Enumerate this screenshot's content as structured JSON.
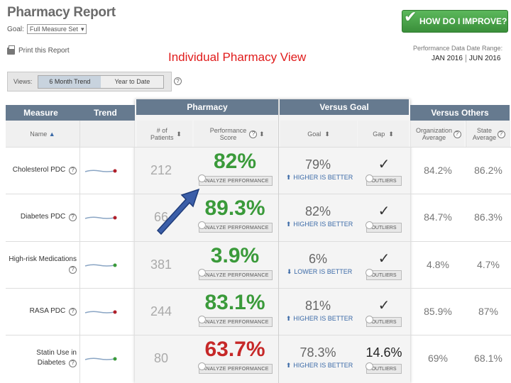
{
  "header": {
    "title": "Pharmacy Report",
    "goal_label": "Goal:",
    "goal_value": "Full Measure Set",
    "print_label": "Print this Report",
    "heading": "Individual Pharmacy View",
    "improve_label": "HOW DO I IMPROVE?",
    "date_range_label": "Performance Data Date Range:",
    "date_start": "JAN 2016",
    "date_end": "JUN 2016"
  },
  "views": {
    "label": "Views:",
    "tabs": [
      "6 Month Trend",
      "Year to Date"
    ],
    "active": 0
  },
  "table_headers": {
    "measure": "Measure",
    "trend": "Trend",
    "name": "Name",
    "pharmacy": "Pharmacy",
    "patients": "# of Patients",
    "performance": "Performance Score",
    "versus_goal": "Versus Goal",
    "goal": "Goal",
    "gap": "Gap",
    "versus_others": "Versus Others",
    "org_avg": "Organization Average",
    "state_avg": "State Average"
  },
  "analyze_label": "ANALYZE PERFORMANCE",
  "outliers_label": "OUTLIERS",
  "rows": [
    {
      "name": "Cholesterol PDC",
      "patients": "212",
      "score": "82%",
      "score_color": "#3a9a3a",
      "goal": "79%",
      "direction": "HIGHER IS BETTER",
      "gap": "",
      "org": "84.2%",
      "state": "86.2%",
      "trend_color": "#b01f2a"
    },
    {
      "name": "Diabetes PDC",
      "patients": "66",
      "score": "89.3%",
      "score_color": "#3a9a3a",
      "goal": "82%",
      "direction": "HIGHER IS BETTER",
      "gap": "",
      "org": "84.7%",
      "state": "86.3%",
      "trend_color": "#b01f2a"
    },
    {
      "name": "High-risk Medications",
      "patients": "381",
      "score": "3.9%",
      "score_color": "#3a9a3a",
      "goal": "6%",
      "direction": "LOWER IS BETTER",
      "gap": "",
      "org": "4.8%",
      "state": "4.7%",
      "trend_color": "#3a9a3a"
    },
    {
      "name": "RASA PDC",
      "patients": "244",
      "score": "83.1%",
      "score_color": "#3a9a3a",
      "goal": "81%",
      "direction": "HIGHER IS BETTER",
      "gap": "",
      "org": "85.9%",
      "state": "87%",
      "trend_color": "#b01f2a"
    },
    {
      "name": "Statin Use in Diabetes",
      "patients": "80",
      "score": "63.7%",
      "score_color": "#c62828",
      "goal": "78.3%",
      "direction": "HIGHER IS BETTER",
      "gap": "14.6%",
      "org": "69%",
      "state": "68.1%",
      "trend_color": "#3a9a3a"
    }
  ],
  "colors": {
    "header_bar": "#667a8f",
    "good": "#3a9a3a",
    "bad": "#c62828",
    "better_text": "#3b6aa7",
    "arrow": "#3b5ea8"
  }
}
